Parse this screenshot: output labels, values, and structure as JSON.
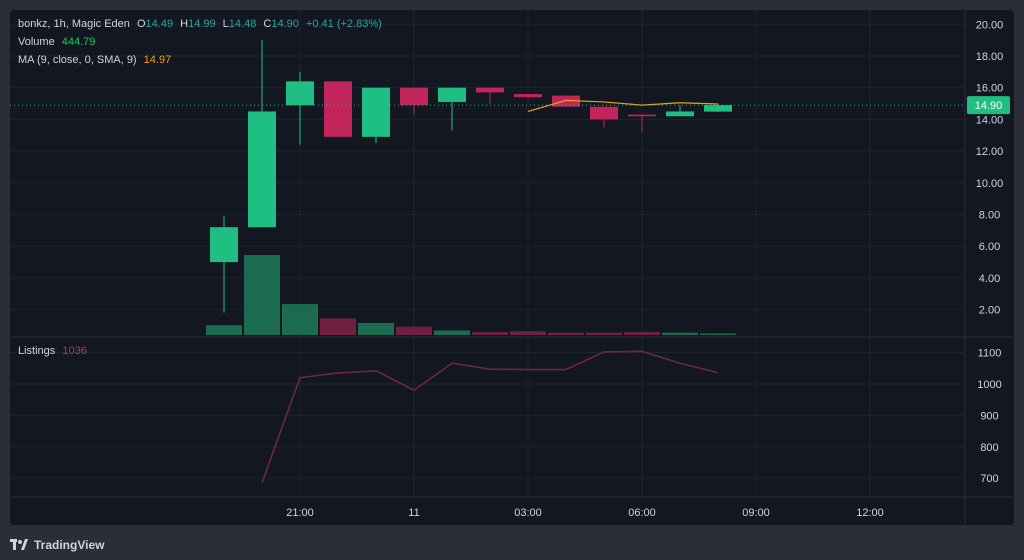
{
  "legend": {
    "title": "bonkz, 1h, Magic Eden",
    "o_label": "O",
    "o": "14.49",
    "h_label": "H",
    "h": "14.99",
    "l_label": "L",
    "l": "14.48",
    "c_label": "C",
    "c": "14.90",
    "change": "+0.41 (+2.83%)",
    "volume_label": "Volume",
    "volume": "444.79",
    "ma_label": "MA (9, close, 0, SMA, 9)",
    "ma": "14.97"
  },
  "listings_legend": {
    "label": "Listings",
    "value": "1036"
  },
  "price_tag": "14.90",
  "branding": "TradingView",
  "colors": {
    "bull": "#1fbf83",
    "bear": "#c2255c",
    "ma": "#f59e0b",
    "listings": "#6b2742",
    "grid": "#1f232e",
    "text": "#d1d4dc"
  },
  "chart_data": [
    {
      "type": "candlestick",
      "title": "bonkz, 1h, Magic Eden",
      "x_ticks": [
        {
          "t": 19.5,
          "label": "21:00"
        },
        {
          "t": 25.5,
          "label": "11"
        },
        {
          "t": 31.5,
          "label": "03:00"
        },
        {
          "t": 37.5,
          "label": "06:00"
        },
        {
          "t": 43.5,
          "label": "09:00"
        },
        {
          "t": 49.5,
          "label": "12:00"
        }
      ],
      "ylim": [
        0.4,
        20.9
      ],
      "y_ticks": [
        2,
        4,
        6,
        8,
        10,
        12,
        14,
        16,
        18,
        20
      ],
      "y_tick_labels": [
        "2.00",
        "4.00",
        "6.00",
        "8.00",
        "10.00",
        "12.00",
        "14.00",
        "16.00",
        "18.00",
        "20.00"
      ],
      "candles": [
        {
          "t": 15.5,
          "o": 5.0,
          "h": 7.9,
          "l": 1.8,
          "c": 7.2
        },
        {
          "t": 17.5,
          "o": 7.2,
          "h": 19.0,
          "l": 7.2,
          "c": 14.5
        },
        {
          "t": 19.5,
          "o": 14.9,
          "h": 17.0,
          "l": 12.4,
          "c": 16.4
        },
        {
          "t": 21.5,
          "o": 16.4,
          "h": 16.4,
          "l": 12.9,
          "c": 12.9
        },
        {
          "t": 23.5,
          "o": 12.9,
          "h": 16.0,
          "l": 12.5,
          "c": 16.0
        },
        {
          "t": 25.5,
          "o": 16.0,
          "h": 16.0,
          "l": 14.3,
          "c": 14.9
        },
        {
          "t": 27.5,
          "o": 15.1,
          "h": 16.0,
          "l": 13.3,
          "c": 16.0
        },
        {
          "t": 29.5,
          "o": 16.0,
          "h": 16.0,
          "l": 15.0,
          "c": 15.7
        },
        {
          "t": 31.5,
          "o": 15.6,
          "h": 15.6,
          "l": 15.3,
          "c": 15.4
        },
        {
          "t": 33.5,
          "o": 15.5,
          "h": 15.5,
          "l": 14.8,
          "c": 14.8
        },
        {
          "t": 35.5,
          "o": 14.8,
          "h": 14.8,
          "l": 13.5,
          "c": 14.0
        },
        {
          "t": 37.5,
          "o": 14.3,
          "h": 14.3,
          "l": 13.2,
          "c": 14.2
        },
        {
          "t": 39.5,
          "o": 14.2,
          "h": 14.9,
          "l": 14.2,
          "c": 14.5
        },
        {
          "t": 41.5,
          "o": 14.49,
          "h": 14.99,
          "l": 14.48,
          "c": 14.9
        }
      ],
      "ma_series": {
        "name": "MA (9, close, 0, SMA, 9)",
        "points": [
          {
            "t": 31.5,
            "v": 14.5
          },
          {
            "t": 33.5,
            "v": 15.2
          },
          {
            "t": 35.5,
            "v": 15.1
          },
          {
            "t": 37.5,
            "v": 14.9
          },
          {
            "t": 39.5,
            "v": 15.05
          },
          {
            "t": 41.5,
            "v": 14.97
          }
        ]
      },
      "volume": [
        {
          "t": 15.5,
          "v": 0.65,
          "dir": "up"
        },
        {
          "t": 17.5,
          "v": 5.3,
          "dir": "up"
        },
        {
          "t": 19.5,
          "v": 2.05,
          "dir": "up"
        },
        {
          "t": 21.5,
          "v": 1.1,
          "dir": "down"
        },
        {
          "t": 23.5,
          "v": 0.8,
          "dir": "up"
        },
        {
          "t": 25.5,
          "v": 0.55,
          "dir": "down"
        },
        {
          "t": 27.5,
          "v": 0.3,
          "dir": "up"
        },
        {
          "t": 29.5,
          "v": 0.2,
          "dir": "down"
        },
        {
          "t": 31.5,
          "v": 0.25,
          "dir": "down"
        },
        {
          "t": 33.5,
          "v": 0.15,
          "dir": "down"
        },
        {
          "t": 35.5,
          "v": 0.15,
          "dir": "down"
        },
        {
          "t": 37.5,
          "v": 0.2,
          "dir": "down"
        },
        {
          "t": 39.5,
          "v": 0.15,
          "dir": "up"
        },
        {
          "t": 41.5,
          "v": 0.1,
          "dir": "up"
        }
      ],
      "last_price": 14.9
    },
    {
      "type": "line",
      "title": "Listings",
      "ylim": [
        640,
        1140
      ],
      "y_ticks": [
        700,
        800,
        900,
        1000,
        1100
      ],
      "y_tick_labels": [
        "700",
        "800",
        "900",
        "1000",
        "1100"
      ],
      "series": [
        {
          "name": "Listings",
          "points": [
            {
              "t": 17.5,
              "v": 685
            },
            {
              "t": 19.5,
              "v": 1020
            },
            {
              "t": 21.5,
              "v": 1035
            },
            {
              "t": 23.5,
              "v": 1042
            },
            {
              "t": 25.5,
              "v": 980
            },
            {
              "t": 27.5,
              "v": 1066
            },
            {
              "t": 29.5,
              "v": 1047
            },
            {
              "t": 31.5,
              "v": 1046
            },
            {
              "t": 33.5,
              "v": 1046
            },
            {
              "t": 35.5,
              "v": 1102
            },
            {
              "t": 37.5,
              "v": 1104
            },
            {
              "t": 39.5,
              "v": 1066
            },
            {
              "t": 41.5,
              "v": 1036
            }
          ]
        }
      ]
    }
  ]
}
